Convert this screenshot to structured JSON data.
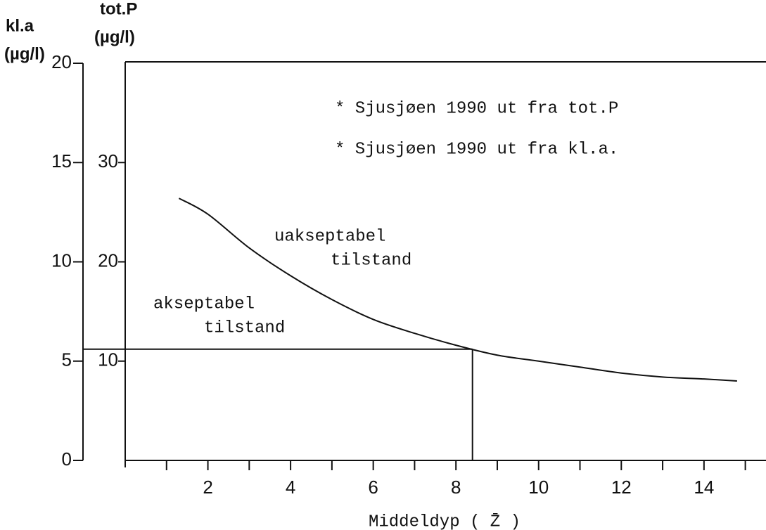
{
  "chart_data": {
    "type": "line",
    "y_axis_title": "kl.a",
    "y_axis_unit": "(µg/l)",
    "y2_axis_title": "tot.P",
    "y2_axis_unit": "(µg/l)",
    "x_axis_label": "Middeldyp ( Z̄ )",
    "annotations": [
      "* Sjusjøen 1990 ut fra tot.P",
      "* Sjusjøen 1990 ut fra kl.a.",
      "uakseptabel",
      "tilstand",
      "akseptabel",
      "tilstand"
    ],
    "x": [
      1.3,
      2,
      3,
      4,
      5,
      6,
      7,
      8,
      9,
      10,
      11,
      12,
      13,
      14,
      14.8
    ],
    "series": [
      {
        "color": "#111111",
        "values": [
          13.2,
          12.4,
          10.7,
          9.3,
          8.1,
          7.1,
          6.4,
          5.8,
          5.3,
          5.0,
          4.7,
          4.4,
          4.2,
          4.1,
          4.0
        ]
      }
    ],
    "reference_lines": {
      "y": 5.6,
      "x": 8.4
    },
    "xlim": [
      0,
      15.5
    ],
    "xticks": [
      2,
      4,
      6,
      8,
      10,
      12,
      14
    ],
    "xminorticks": [
      1,
      3,
      5,
      7,
      9,
      11,
      13,
      15
    ],
    "ylim": [
      0,
      20
    ],
    "yticks": [
      0,
      5,
      10,
      15,
      20
    ],
    "y2lim": [
      0,
      40
    ],
    "y2ticks": [
      10,
      20,
      30
    ]
  }
}
